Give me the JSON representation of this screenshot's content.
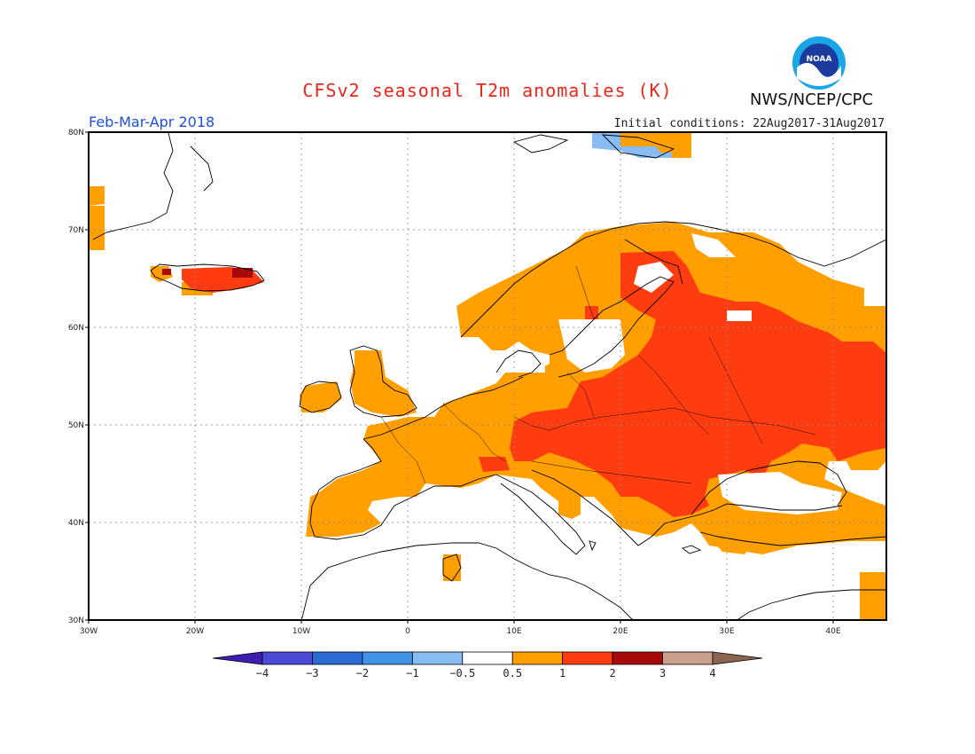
{
  "title": "CFSv2 seasonal T2m anomalies (K)",
  "agency": "NWS/NCEP/CPC",
  "logo_text": "NOAA",
  "period": "Feb-Mar-Apr 2018",
  "initial_conditions": "Initial conditions: 22Aug2017-31Aug2017",
  "map": {
    "lon_range": [
      -30,
      45
    ],
    "lat_range": [
      30,
      80
    ],
    "lon_ticks": [
      {
        "value": -30,
        "label": "30W"
      },
      {
        "value": -20,
        "label": "20W"
      },
      {
        "value": -10,
        "label": "10W"
      },
      {
        "value": 0,
        "label": "0"
      },
      {
        "value": 10,
        "label": "10E"
      },
      {
        "value": 20,
        "label": "20E"
      },
      {
        "value": 30,
        "label": "30E"
      },
      {
        "value": 40,
        "label": "40E"
      }
    ],
    "lat_ticks": [
      {
        "value": 30,
        "label": "30N"
      },
      {
        "value": 40,
        "label": "40N"
      },
      {
        "value": 50,
        "label": "50N"
      },
      {
        "value": 60,
        "label": "60N"
      },
      {
        "value": 70,
        "label": "70N"
      },
      {
        "value": 80,
        "label": "80N"
      }
    ],
    "grid": true
  },
  "colorbar": {
    "colors": [
      "#3d1eb0",
      "#4a4ad6",
      "#2a6cd4",
      "#3f92e8",
      "#87bdf3",
      "#ffffff",
      "#ff9f00",
      "#ff3c10",
      "#a80a0a",
      "#c8a08c",
      "#8c6450"
    ],
    "labels": [
      "−4",
      "−3",
      "−2",
      "−1",
      "−0.5",
      "0.5",
      "1",
      "2",
      "3",
      "4"
    ]
  },
  "anomaly_colors": {
    "weak_cold": "#87bdf3",
    "warm_0_5_to_1": "#ff9f00",
    "warm_1_to_2": "#ff3c10",
    "warm_2_to_3": "#a80a0a"
  }
}
